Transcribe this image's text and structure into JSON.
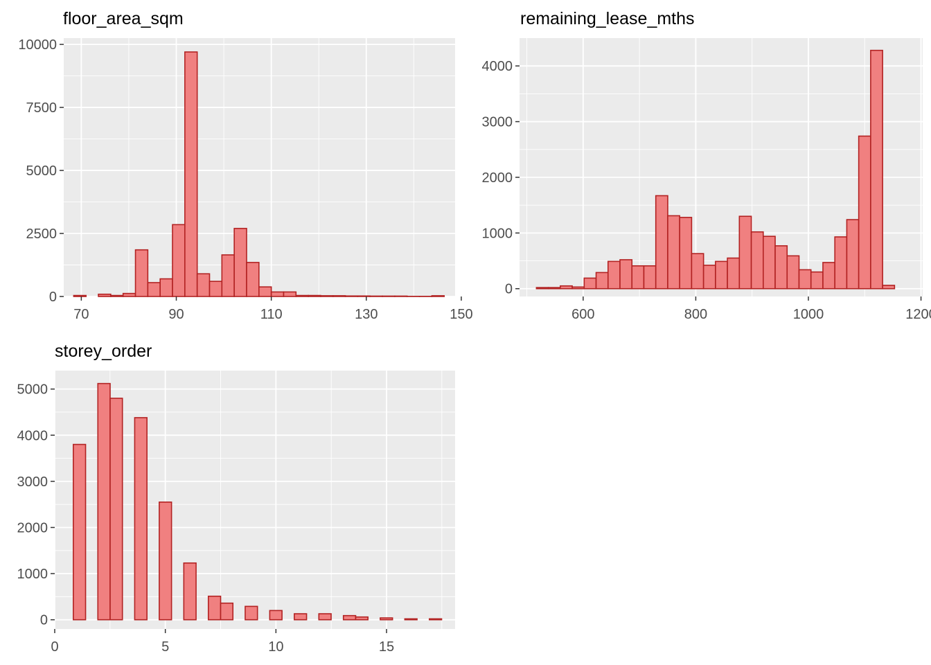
{
  "colors": {
    "panel_bg": "#EBEBEB",
    "grid": "#FFFFFF",
    "bar_fill": "#F08080",
    "bar_stroke": "#B22222",
    "tick": "#333333",
    "tick_text": "#4D4D4D"
  },
  "chart_data": [
    {
      "type": "bar",
      "title": "floor_area_sqm",
      "xlabel": "",
      "ylabel": "",
      "xlim": [
        66.3,
        148.7
      ],
      "ylim": [
        0,
        10250
      ],
      "xticks": [
        70,
        90,
        110,
        130,
        150
      ],
      "xtick_labels": [
        "70",
        "90",
        "110",
        "130",
        "150"
      ],
      "yticks": [
        0,
        2500,
        5000,
        7500,
        10000
      ],
      "ytick_labels": [
        "0",
        "2500",
        "5000",
        "7500",
        "10000"
      ],
      "grid": true,
      "bins": {
        "start": 68.4,
        "width": 2.6,
        "values": [
          40,
          0,
          90,
          40,
          120,
          1850,
          550,
          700,
          2850,
          9700,
          900,
          600,
          1650,
          2700,
          1350,
          380,
          180,
          180,
          40,
          40,
          30,
          30,
          20,
          20,
          15,
          15,
          15,
          5,
          5,
          30
        ]
      }
    },
    {
      "type": "bar",
      "title": "remaining_lease_mths",
      "xlabel": "",
      "ylabel": "",
      "xlim": [
        487,
        1203
      ],
      "ylim": [
        -140,
        4500
      ],
      "xticks": [
        600,
        800,
        1000,
        1200
      ],
      "xtick_labels": [
        "600",
        "800",
        "1000",
        "1200"
      ],
      "yticks": [
        0,
        1000,
        2000,
        3000,
        4000
      ],
      "ytick_labels": [
        "0",
        "1000",
        "2000",
        "3000",
        "4000"
      ],
      "grid": true,
      "bins": {
        "start": 517,
        "width": 21.2,
        "values": [
          20,
          20,
          50,
          30,
          190,
          290,
          490,
          520,
          410,
          410,
          1670,
          1310,
          1280,
          630,
          420,
          490,
          550,
          1300,
          1020,
          940,
          770,
          590,
          340,
          300,
          470,
          930,
          1240,
          2740,
          4280,
          60
        ]
      }
    },
    {
      "type": "bar",
      "title": "storey_order",
      "xlabel": "",
      "ylabel": "",
      "xlim": [
        0,
        18.1
      ],
      "ylim": [
        -200,
        5400
      ],
      "xticks": [
        0,
        5,
        10,
        15
      ],
      "xtick_labels": [
        "0",
        "5",
        "10",
        "15"
      ],
      "yticks": [
        0,
        1000,
        2000,
        3000,
        4000,
        5000
      ],
      "ytick_labels": [
        "0",
        "1000",
        "2000",
        "3000",
        "4000",
        "5000"
      ],
      "grid": true,
      "bins": {
        "start": 0.84,
        "width": 0.555,
        "values": [
          3800,
          0,
          5120,
          4800,
          0,
          4380,
          0,
          2550,
          0,
          1230,
          0,
          510,
          360,
          0,
          290,
          0,
          200,
          0,
          130,
          0,
          130,
          0,
          90,
          60,
          0,
          40,
          0,
          20,
          0,
          20
        ]
      }
    }
  ]
}
